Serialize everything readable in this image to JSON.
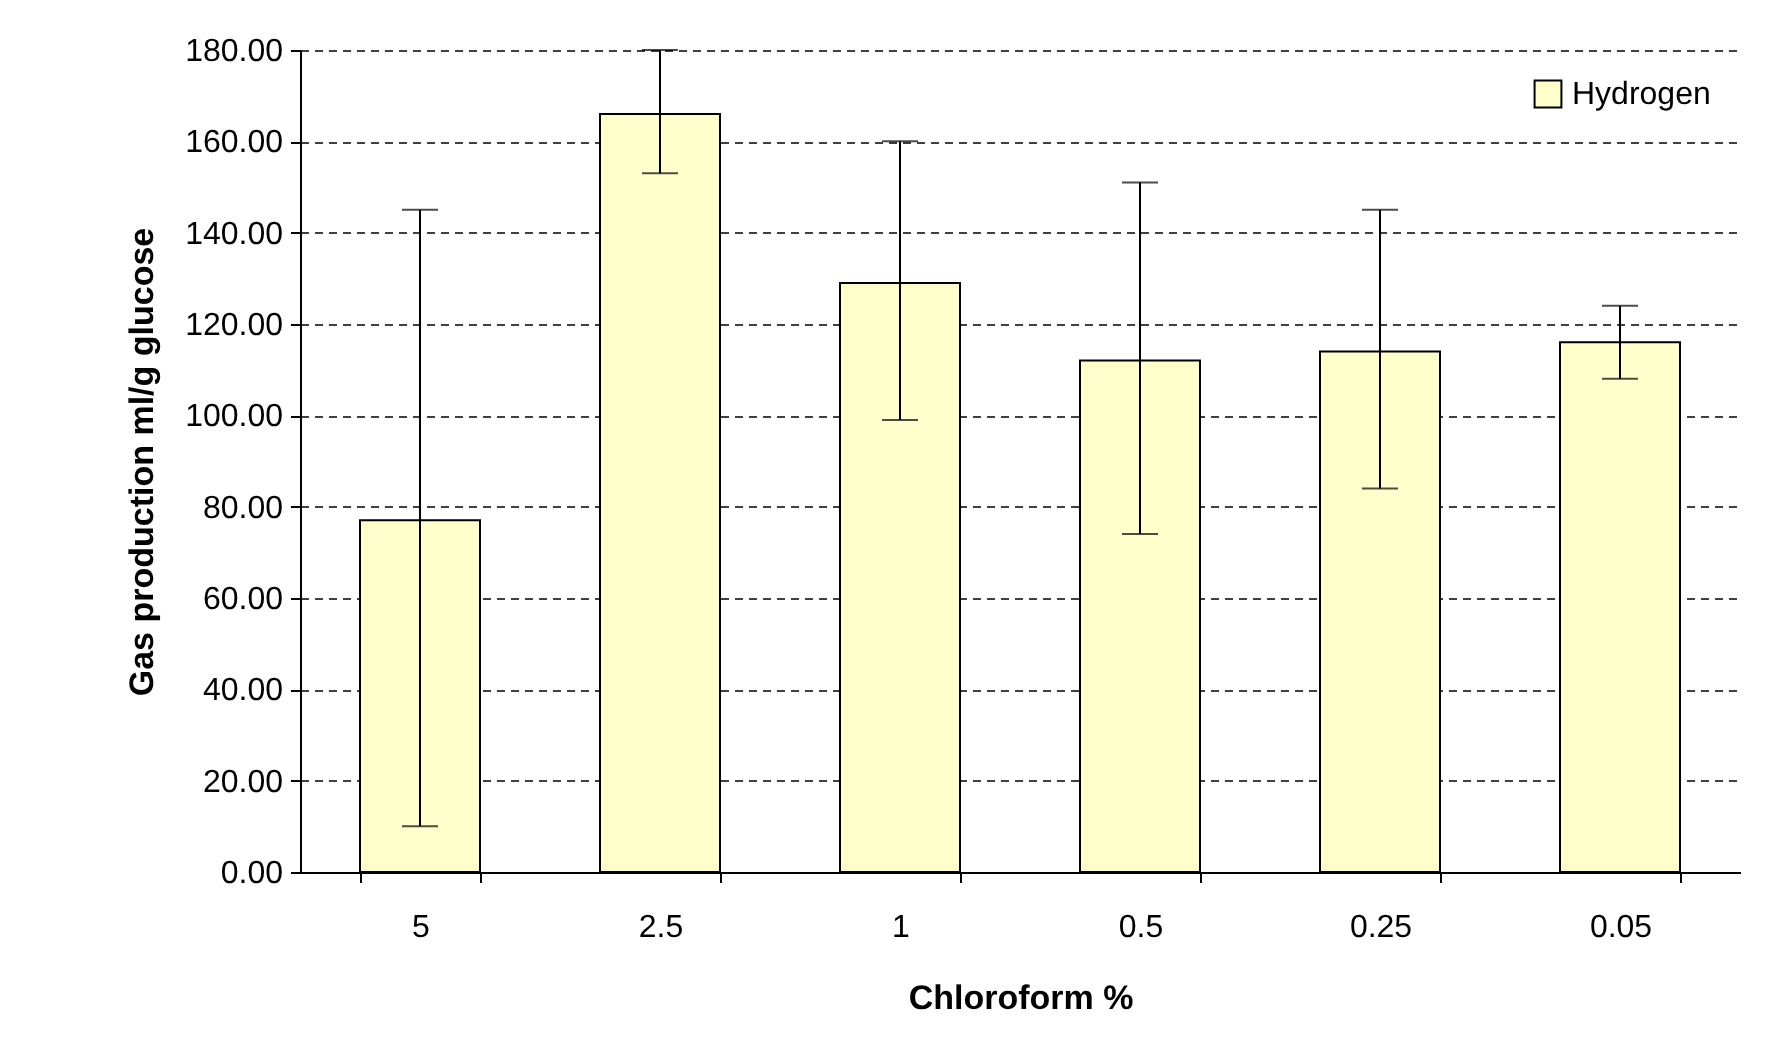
{
  "chart_data": {
    "type": "bar",
    "xlabel": "Chloroform %",
    "ylabel": "Gas production ml/g glucose",
    "categories": [
      "5",
      "2.5",
      "1",
      "0.5",
      "0.25",
      "0.05"
    ],
    "series": [
      {
        "name": "Hydrogen",
        "color": "#ffffcc",
        "values": [
          77,
          166,
          129,
          112,
          114,
          116
        ],
        "errors": [
          [
            10,
            145
          ],
          [
            153,
            180
          ],
          [
            99,
            160
          ],
          [
            74,
            151
          ],
          [
            84,
            145
          ],
          [
            108,
            124
          ]
        ]
      }
    ],
    "ylim": [
      0,
      180
    ],
    "yticks": [
      {
        "value": 0,
        "label": "0.00"
      },
      {
        "value": 20,
        "label": "20.00"
      },
      {
        "value": 40,
        "label": "40.00"
      },
      {
        "value": 60,
        "label": "60.00"
      },
      {
        "value": 80,
        "label": "80.00"
      },
      {
        "value": 100,
        "label": "100.00"
      },
      {
        "value": 120,
        "label": "120.00"
      },
      {
        "value": 140,
        "label": "140.00"
      },
      {
        "value": 160,
        "label": "160.00"
      },
      {
        "value": 180,
        "label": "180.00"
      }
    ],
    "grid": "y",
    "legend": "top right"
  }
}
